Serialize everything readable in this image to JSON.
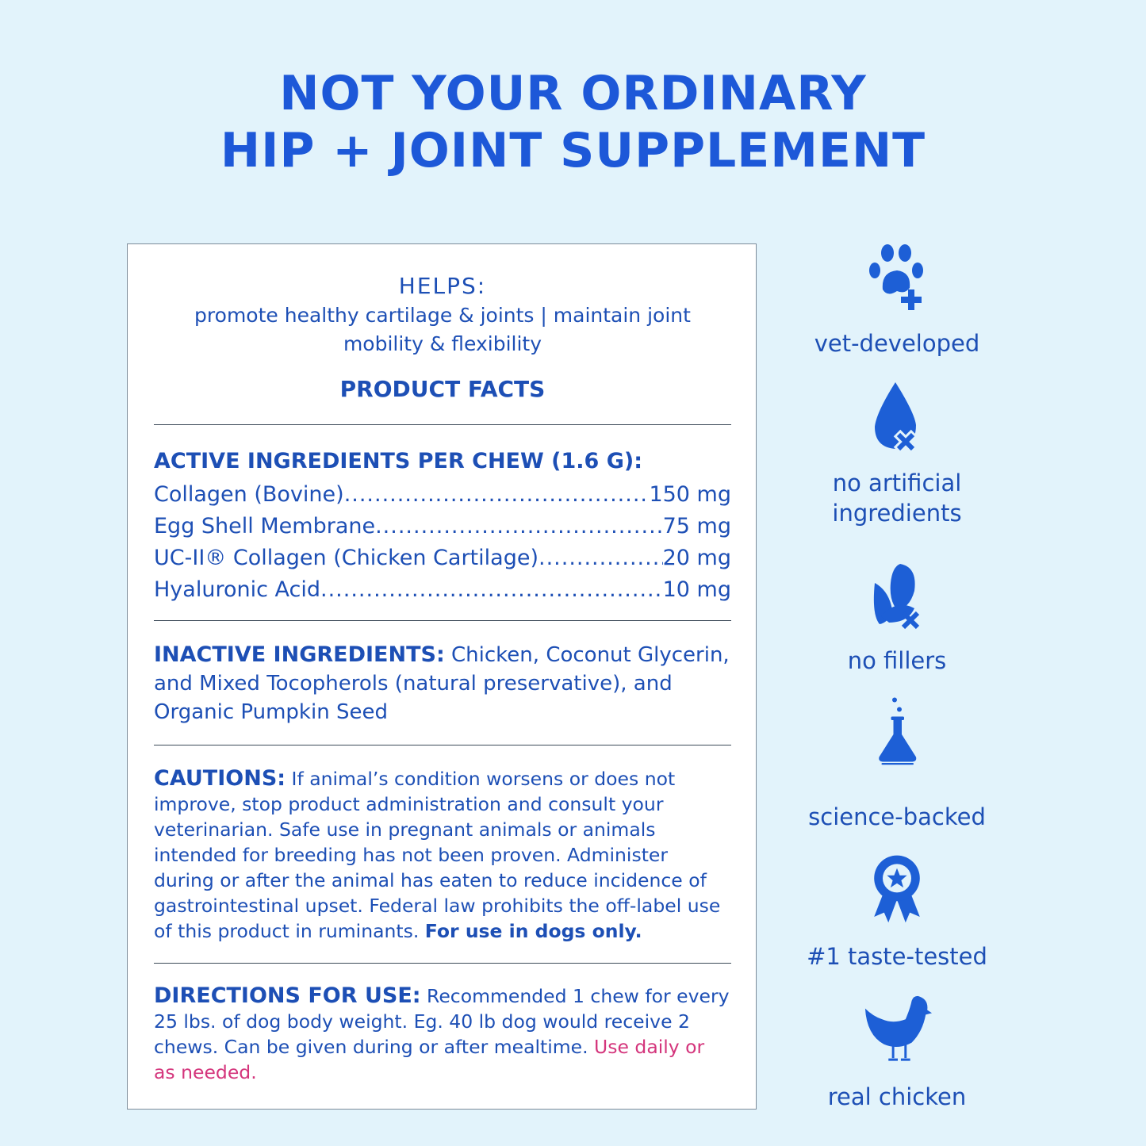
{
  "title": {
    "line1": "NOT YOUR ORDINARY",
    "line2": "HIP + JOINT SUPPLEMENT"
  },
  "panel": {
    "helps_heading": "HELPS:",
    "helps_text": "promote healthy cartilage & joints | maintain joint mobility & flexibility",
    "product_facts": "PRODUCT FACTS",
    "active_heading": "ACTIVE INGREDIENTS PER CHEW (1.6 G):",
    "active": [
      {
        "name": "Collagen (Bovine)",
        "amount": "150 mg"
      },
      {
        "name": "Egg Shell Membrane",
        "amount": "75 mg"
      },
      {
        "name": "UC-II® Collagen (Chicken Cartilage) ",
        "amount": "20 mg"
      },
      {
        "name": "Hyaluronic Acid ",
        "amount": "10 mg"
      }
    ],
    "inactive_heading": "INACTIVE INGREDIENTS:",
    "inactive_text": " Chicken, Coconut Glycerin, and Mixed Tocopherols (natural preservative), and Organic Pumpkin Seed",
    "cautions_heading": "CAUTIONS:",
    "cautions_text": " If animal’s condition worsens or does not improve, stop product administration and consult your veterinarian. Safe use in pregnant animals or animals intended for breeding has not been proven. Administer during or after the animal has eaten to reduce incidence of gastrointestinal upset. Federal law prohibits the off-label use of this product in ruminants. ",
    "cautions_bold": "For use in dogs only.",
    "directions_heading": "DIRECTIONS FOR USE:",
    "directions_text": " Recommended 1 chew for every 25 lbs. of dog body weight. Eg. 40 lb dog would receive 2 chews. Can be given during or after mealtime. ",
    "directions_highlight": "Use daily or as needed."
  },
  "features": [
    {
      "icon": "paw-plus-icon",
      "label": "vet-developed"
    },
    {
      "icon": "drop-x-icon",
      "label": "no artificial ingredients"
    },
    {
      "icon": "corn-x-icon",
      "label": "no fillers"
    },
    {
      "icon": "flask-icon",
      "label": "science-backed"
    },
    {
      "icon": "award-ribbon-icon",
      "label": "#1 taste-tested"
    },
    {
      "icon": "chicken-icon",
      "label": "real chicken"
    }
  ],
  "colors": {
    "background": "#e2f3fb",
    "title": "#1d58d8",
    "text": "#1d4fb5",
    "highlight": "#d4357c",
    "icon": "#1d5fd6"
  }
}
